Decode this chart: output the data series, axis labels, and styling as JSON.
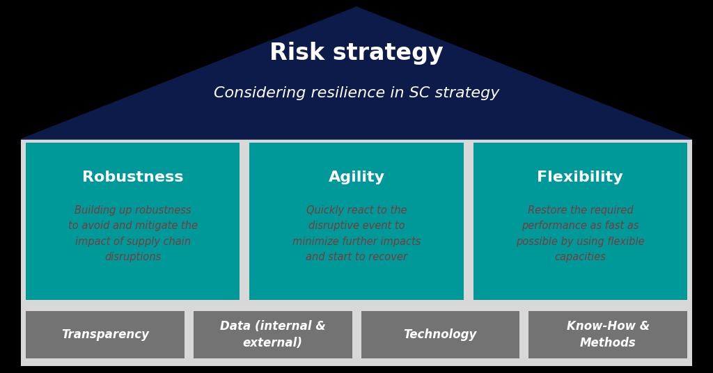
{
  "title": "Risk strategy",
  "subtitle": "Considering resilience in SC strategy",
  "title_color": "#ffffff",
  "subtitle_color": "#ffffff",
  "outer_bg_color": "#000000",
  "triangle_color": "#0d1b4b",
  "main_bg_color": "#d8d8d8",
  "teal_color": "#009999",
  "section_titles": [
    "Robustness",
    "Agility",
    "Flexibility"
  ],
  "section_title_color": "#ffffff",
  "section_texts": [
    "Building up robustness\nto avoid and mitigate the\nimpact of supply chain\ndisruptions",
    "Quickly react to the\ndisruptive event to\nminimize further impacts\nand start to recover",
    "Restore the required\nperformance as fast as\npossible by using flexible\ncapacities"
  ],
  "section_text_color": "#7B3B3B",
  "bottom_labels": [
    "Transparency",
    "Data (internal &\nexternal)",
    "Technology",
    "Know-How &\nMethods"
  ],
  "bottom_box_color": "#737373",
  "bottom_text_color": "#ffffff",
  "bottom_bg_color": "#d8d8d8",
  "fig_width": 10.24,
  "fig_height": 5.36
}
